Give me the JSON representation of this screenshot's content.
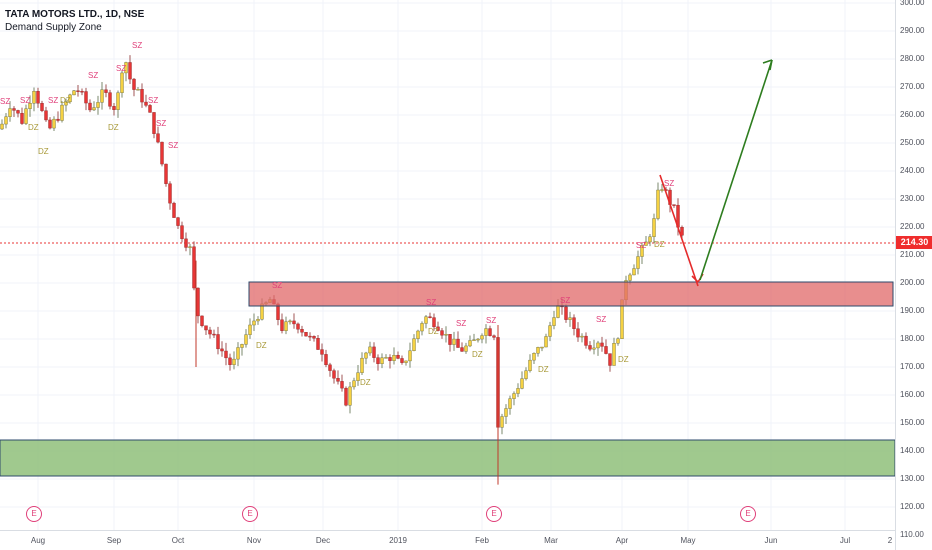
{
  "symbol_title": "TATA MOTORS LTD., 1D, NSE",
  "indicator_name": "Demand Supply Zone",
  "last_price": "214.30",
  "price_ticks": [
    "300.00",
    "290.00",
    "280.00",
    "270.00",
    "260.00",
    "250.00",
    "240.00",
    "230.00",
    "220.00",
    "210.00",
    "200.00",
    "190.00",
    "180.00",
    "170.00",
    "160.00",
    "150.00",
    "140.00",
    "130.00",
    "120.00",
    "110.00"
  ],
  "time_ticks": [
    "Aug",
    "Sep",
    "Oct",
    "Nov",
    "Dec",
    "2019",
    "Feb",
    "Mar",
    "Apr",
    "May",
    "Jun",
    "Jul",
    "2"
  ],
  "earnings_badge": "E",
  "zone_labels": {
    "supply": "SZ",
    "demand": "DZ"
  },
  "colors": {
    "up_candle": "#f5d142",
    "down_candle": "#e83535",
    "supply_zone_fill": "#e06868",
    "demand_zone_fill": "#8fbf7a",
    "projection_up": "#2e7d1f",
    "projection_down": "#e52b2b",
    "last_price_line": "#e83535"
  },
  "chart_data": {
    "type": "candlestick",
    "title": "TATA MOTORS LTD., 1D, NSE",
    "y_axis": {
      "min": 110,
      "max": 300,
      "step": 10
    },
    "x_axis": [
      "Aug",
      "Sep",
      "Oct",
      "Nov",
      "Dec",
      "2019",
      "Feb",
      "Mar",
      "Apr",
      "May",
      "Jun",
      "Jul",
      "2"
    ],
    "last_price": 214.3,
    "zones": [
      {
        "kind": "supply",
        "from": 191.5,
        "to": 200
      },
      {
        "kind": "demand",
        "from": 131,
        "to": 145
      }
    ],
    "projection": [
      {
        "from": 240,
        "to": 199,
        "direction": "down"
      },
      {
        "from": 199,
        "to": 281,
        "direction": "up"
      }
    ],
    "path": [
      {
        "month": "Aug",
        "close": 262
      },
      {
        "month": "Sep",
        "close": 272
      },
      {
        "month": "Oct",
        "close": 218
      },
      {
        "month": "Nov",
        "close": 183
      },
      {
        "month": "Dec",
        "close": 160
      },
      {
        "month": "2019",
        "close": 177
      },
      {
        "month": "Feb",
        "close": 148
      },
      {
        "month": "Mar",
        "close": 185
      },
      {
        "month": "Apr",
        "close": 208
      },
      {
        "month": "Apr",
        "close": 236
      },
      {
        "month": "May",
        "close": 214.3
      }
    ]
  }
}
